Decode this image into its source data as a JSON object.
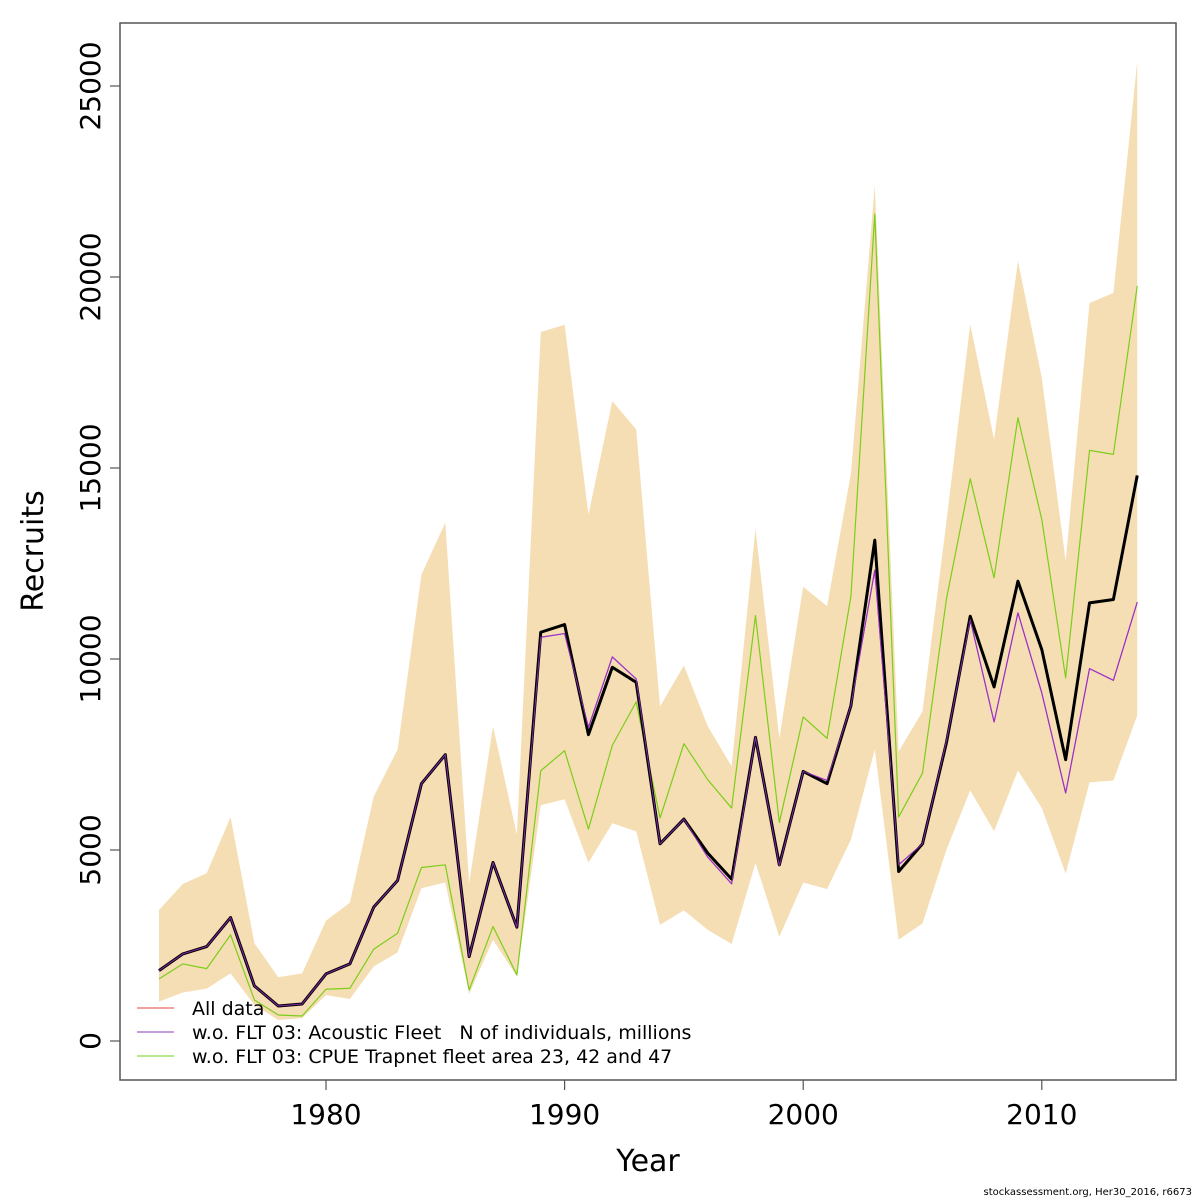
{
  "chart_data": {
    "type": "line",
    "title": "",
    "xlabel": "Year",
    "ylabel": "Recruits",
    "xlim": [
      1971.3,
      2015.6
    ],
    "ylim": [
      -1000,
      27200
    ],
    "xticks": [
      1980,
      1990,
      2000,
      2010
    ],
    "xtick_labels": [
      "1980",
      "1990",
      "2000",
      "2010"
    ],
    "yticks": [
      0,
      5000,
      10000,
      15000,
      20000,
      25000
    ],
    "ytick_labels": [
      "0",
      "5000",
      "10000",
      "15000",
      "20000",
      "25000"
    ],
    "grid": false,
    "legend_position": "bottom-left",
    "x": [
      1973,
      1974,
      1975,
      1976,
      1977,
      1978,
      1979,
      1980,
      1981,
      1982,
      1983,
      1984,
      1985,
      1986,
      1987,
      1988,
      1989,
      1990,
      1991,
      1992,
      1993,
      1994,
      1995,
      1996,
      1997,
      1998,
      1999,
      2000,
      2001,
      2002,
      2003,
      2004,
      2005,
      2006,
      2007,
      2008,
      2009,
      2010,
      2011,
      2012,
      2013,
      2014
    ],
    "confidence_band": {
      "name": "95% confidence interval (All data)",
      "color": "#f5deb3",
      "upper": [
        3430,
        4110,
        4390,
        5860,
        2560,
        1670,
        1770,
        3150,
        3620,
        6400,
        7630,
        12210,
        13570,
        4130,
        8240,
        5400,
        18560,
        18750,
        13780,
        16750,
        16010,
        8760,
        9830,
        8240,
        7190,
        13410,
        7930,
        11890,
        11380,
        14850,
        22410,
        7580,
        8630,
        13580,
        18760,
        15750,
        20420,
        17360,
        12560,
        19320,
        19580,
        25640
      ],
      "lower": [
        1030,
        1270,
        1370,
        1770,
        940,
        550,
        600,
        1200,
        1100,
        1950,
        2320,
        4000,
        4150,
        1230,
        2650,
        1690,
        6170,
        6330,
        4670,
        5700,
        5490,
        3040,
        3420,
        2910,
        2540,
        4660,
        2730,
        4150,
        3980,
        5270,
        7630,
        2650,
        3080,
        5000,
        6560,
        5490,
        7080,
        6100,
        4380,
        6770,
        6820,
        8520
      ]
    },
    "series": [
      {
        "name": "All data",
        "color": "#f08080",
        "values": [
          1842,
          2280,
          2472,
          3232,
          1441,
          917,
          970,
          1756,
          2018,
          3503,
          4202,
          6735,
          7495,
          2210,
          4673,
          2980,
          10700,
          10902,
          8019,
          9783,
          9390,
          5162,
          5809,
          4918,
          4237,
          7949,
          4612,
          7057,
          6735,
          8779,
          13111,
          4437,
          5162,
          7801,
          11119,
          9269,
          12037,
          10246,
          7364,
          11470,
          11557,
          14806
        ]
      },
      {
        "name": "w.o. FLT 03: Acoustic Fleet   N of individuals, millions",
        "color": "#9b30c8",
        "values": [
          1842,
          2280,
          2472,
          3232,
          1441,
          917,
          970,
          1756,
          2018,
          3503,
          4202,
          6735,
          7495,
          2210,
          4673,
          2980,
          10569,
          10666,
          8211,
          10055,
          9478,
          5162,
          5809,
          4813,
          4114,
          7949,
          4586,
          7057,
          6821,
          8779,
          12325,
          4612,
          5162,
          7841,
          11033,
          8352,
          11208,
          9111,
          6491,
          9748,
          9442,
          11486
        ]
      },
      {
        "name": "w.o. FLT 03: CPUE Trapnet fleet area 23, 42 and 47",
        "color": "#7ccd1a",
        "values": [
          1625,
          2018,
          1895,
          2778,
          1074,
          681,
          655,
          1354,
          1380,
          2403,
          2822,
          4542,
          4612,
          1337,
          2996,
          1730,
          7075,
          7600,
          5548,
          7739,
          8876,
          5835,
          7783,
          6840,
          6098,
          11137,
          5721,
          8483,
          7922,
          11643,
          21646,
          5862,
          7015,
          11557,
          14720,
          12125,
          16317,
          13653,
          9505,
          15461,
          15356,
          19767
        ]
      }
    ],
    "main_line": {
      "name": "All data (bold)",
      "color": "#000000"
    }
  },
  "legend": {
    "items": [
      {
        "label": "All data",
        "color": "#f08080"
      },
      {
        "label": "w.o. FLT 03: Acoustic Fleet   N of individuals, millions",
        "color": "#b07fd0"
      },
      {
        "label": "w.o. FLT 03: CPUE Trapnet fleet area 23, 42 and 47",
        "color": "#9de06a"
      }
    ]
  },
  "footer": {
    "text": "stockassessment.org, Her30_2016, r6673"
  }
}
